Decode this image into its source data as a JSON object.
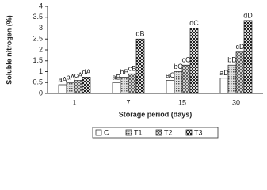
{
  "chart_data": {
    "type": "bar",
    "y_label": "Soluble nitrogen (%)",
    "x_label": "Storage period (days)",
    "categories": [
      "1",
      "7",
      "15",
      "30"
    ],
    "series": [
      {
        "name": "C",
        "color": "#ffffff",
        "pattern": "none",
        "values": [
          0.4,
          0.5,
          0.6,
          0.7
        ],
        "labels": [
          "aA",
          "aB",
          "aC",
          "aD"
        ]
      },
      {
        "name": "T1",
        "color": "#9a9a9a",
        "pattern": "dots",
        "values": [
          0.5,
          0.75,
          1.0,
          1.3
        ],
        "labels": [
          "bA",
          "bB",
          "bC",
          "bD"
        ]
      },
      {
        "name": "T2",
        "color": "#b8b8b8",
        "pattern": "cross",
        "values": [
          0.6,
          0.9,
          1.3,
          1.9
        ],
        "labels": [
          "cA",
          "cB",
          "cC",
          "cD"
        ]
      },
      {
        "name": "T3",
        "color": "#3a3a3a",
        "pattern": "checker",
        "values": [
          0.75,
          2.5,
          3.0,
          3.35
        ],
        "labels": [
          "dA",
          "dB",
          "dC",
          "dD"
        ]
      }
    ],
    "ylim": [
      0,
      4
    ],
    "yticks": [
      0,
      0.5,
      1,
      1.5,
      2,
      2.5,
      3,
      3.5,
      4
    ],
    "grid": false,
    "legend": "bottom"
  }
}
